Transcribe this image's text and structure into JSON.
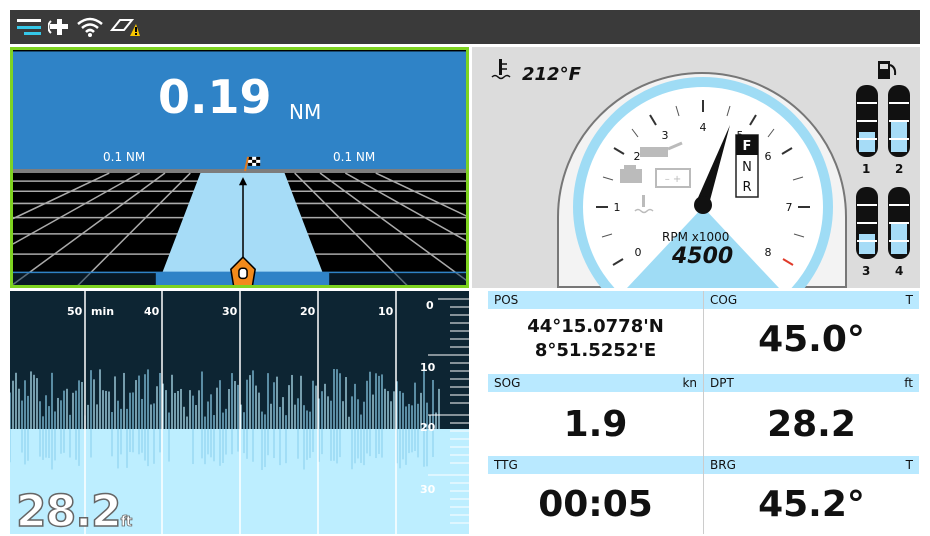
{
  "status_bar": {
    "icons": [
      "menu-icon",
      "satellite-icon",
      "wifi-icon",
      "warning-icon"
    ]
  },
  "highway": {
    "distance_value": "0.19",
    "distance_unit": "NM",
    "left_scale": "0.1 NM",
    "right_scale": "0.1 NM"
  },
  "engine": {
    "temperature": "212°F",
    "rpm_label": "RPM x1000",
    "rpm_value": "4500",
    "gauge_ticks": [
      "0",
      "1",
      "2",
      "3",
      "4",
      "5",
      "6",
      "7",
      "8"
    ],
    "gear": [
      "F",
      "N",
      "R"
    ],
    "selected_gear": "F",
    "tanks": [
      "1",
      "2",
      "3",
      "4"
    ],
    "tank_levels": [
      0.35,
      0.55,
      0.35,
      0.55
    ]
  },
  "fishfinder": {
    "time_unit": "min",
    "time_ticks": [
      "50",
      "40",
      "30",
      "20",
      "10"
    ],
    "depth_ticks": [
      "0",
      "10",
      "20",
      "30"
    ],
    "depth_value": "28.2",
    "depth_unit": "ft"
  },
  "databoxes": [
    {
      "label": "POS",
      "unit": "",
      "value_line1": "44°15.0778'N",
      "value_line2": "8°51.5252'E"
    },
    {
      "label": "COG",
      "unit": "T",
      "value": "45.0°"
    },
    {
      "label": "SOG",
      "unit": "kn",
      "value": "1.9"
    },
    {
      "label": "DPT",
      "unit": "ft",
      "value": "28.2"
    },
    {
      "label": "TTG",
      "unit": "",
      "value": "00:05"
    },
    {
      "label": "BRG",
      "unit": "T",
      "value": "45.2°"
    }
  ],
  "colors": {
    "accent_green": "#7ed321",
    "sky_blue": "#2f83c7",
    "lane_blue": "#a6dcf7",
    "header_blue": "#b9e9ff",
    "warning_yellow": "#f5c400"
  }
}
